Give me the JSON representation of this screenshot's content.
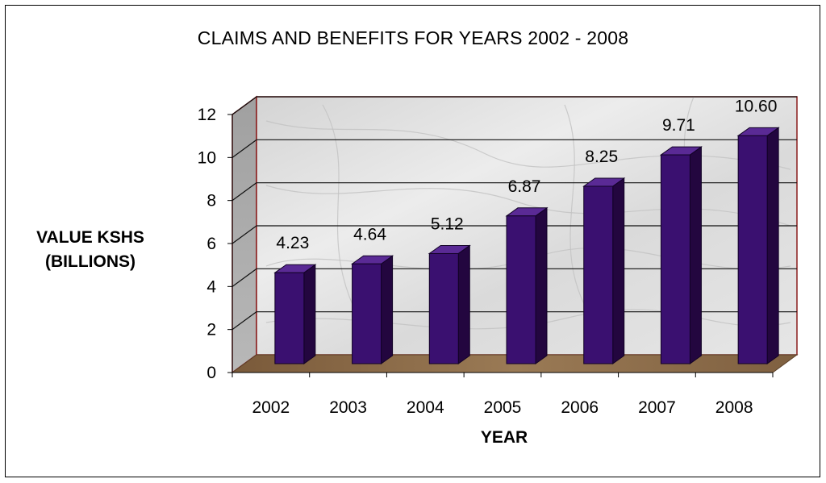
{
  "chart_data": {
    "type": "bar",
    "title": "CLAIMS AND BENEFITS FOR YEARS 2002 - 2008",
    "xlabel": "YEAR",
    "ylabel_lines": [
      "VALUE KSHS",
      "(BILLIONS)"
    ],
    "categories": [
      "2002",
      "2003",
      "2004",
      "2005",
      "2006",
      "2007",
      "2008"
    ],
    "values": [
      4.23,
      4.64,
      5.12,
      6.87,
      8.25,
      9.71,
      10.6
    ],
    "value_labels": [
      "4.23",
      "4.64",
      "5.12",
      "6.87",
      "8.25",
      "9.71",
      "10.60"
    ],
    "ylim": [
      0,
      12
    ],
    "yticks": [
      "0",
      "2",
      "4",
      "6",
      "8",
      "10",
      "12"
    ],
    "grid": true,
    "style_3d": true,
    "colors": {
      "bar_front": "#3a1070",
      "bar_side": "#23063f",
      "bar_top": "#5a2a95",
      "floor": "#8a6a48",
      "back_wall": "#dcdcdc",
      "side_wall": "#a8a8a8",
      "wall_border": "#8a1c1c"
    }
  }
}
